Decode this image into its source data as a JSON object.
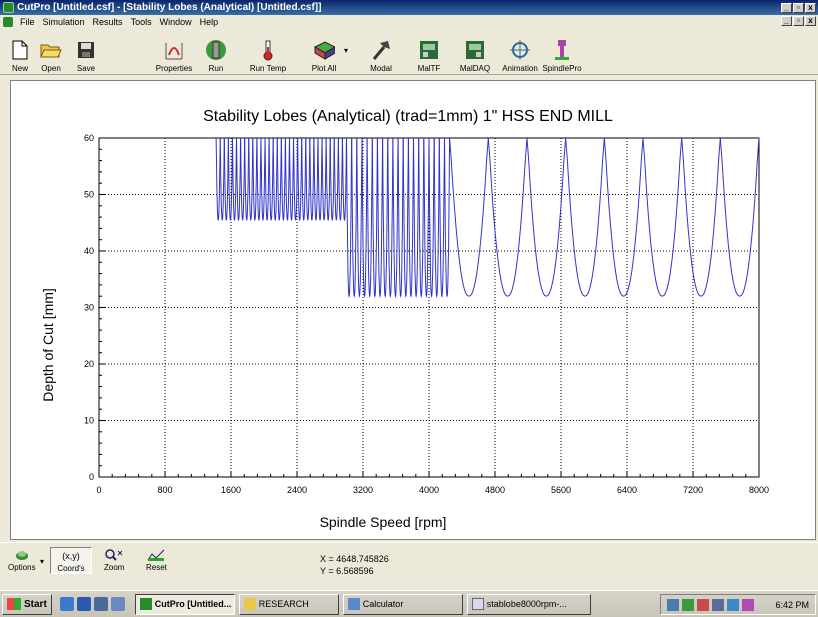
{
  "window": {
    "title": "CutPro [Untitled.csf] - [Stability Lobes (Analytical) [Untitled.csf]]",
    "min": "_",
    "max": "▫",
    "close": "x"
  },
  "menu": [
    "File",
    "Simulation",
    "Results",
    "Tools",
    "Window",
    "Help"
  ],
  "toolbar": [
    {
      "label": "New",
      "icon": "new-document-icon"
    },
    {
      "label": "Open",
      "icon": "open-folder-icon"
    },
    {
      "label": "Save",
      "icon": "save-disk-icon"
    },
    {
      "label": "Properties",
      "icon": "properties-icon"
    },
    {
      "label": "Run",
      "icon": "run-icon"
    },
    {
      "label": "Run Temp",
      "icon": "run-temp-icon"
    },
    {
      "label": "Plot All",
      "icon": "plot-all-icon"
    },
    {
      "label": "Modal",
      "icon": "modal-hammer-icon"
    },
    {
      "label": "MalTF",
      "icon": "maltf-icon"
    },
    {
      "label": "MalDAQ",
      "icon": "maldaq-icon"
    },
    {
      "label": "Animation",
      "icon": "animation-icon"
    },
    {
      "label": "SpindlePro",
      "icon": "spindlepro-icon"
    }
  ],
  "chart_data": {
    "type": "line",
    "title": "Stability Lobes (Analytical) (trad=1mm) 1\" HSS END MILL",
    "xlabel": "Spindle Speed [rpm]",
    "ylabel": "Depth of Cut [mm]",
    "xlim": [
      0,
      8000
    ],
    "ylim": [
      0,
      60
    ],
    "xticks": [
      0,
      800,
      1600,
      2400,
      3200,
      4000,
      4800,
      5600,
      6400,
      7200,
      8000
    ],
    "yticks": [
      0,
      10,
      20,
      30,
      40,
      50,
      60
    ],
    "grid": true,
    "line_color": "#3333cc",
    "segments": [
      {
        "x_start": 1420,
        "x_end": 3000,
        "minimum": 45.5,
        "lobes": 32
      },
      {
        "x_start": 3000,
        "x_end": 4250,
        "minimum": 32,
        "lobes": 20
      },
      {
        "x_start": 4250,
        "x_end": 8000,
        "minimum": 32,
        "lobes": 8
      }
    ]
  },
  "bottombar": {
    "buttons": [
      {
        "label": "Options",
        "icon": "options-icon"
      },
      {
        "label": "Coord's",
        "icon": "coords-icon",
        "glyph": "(x,y)"
      },
      {
        "label": "Zoom",
        "icon": "zoom-icon"
      },
      {
        "label": "Reset",
        "icon": "reset-icon"
      }
    ],
    "x_readout": "X = 4648.745826",
    "y_readout": "Y = 6.568596"
  },
  "taskbar": {
    "start": "Start",
    "tasks": [
      "CutPro [Untitled...",
      "RESEARCH",
      "Calculator",
      "stablobe8000rpm-..."
    ],
    "clock": "6:42 PM"
  }
}
